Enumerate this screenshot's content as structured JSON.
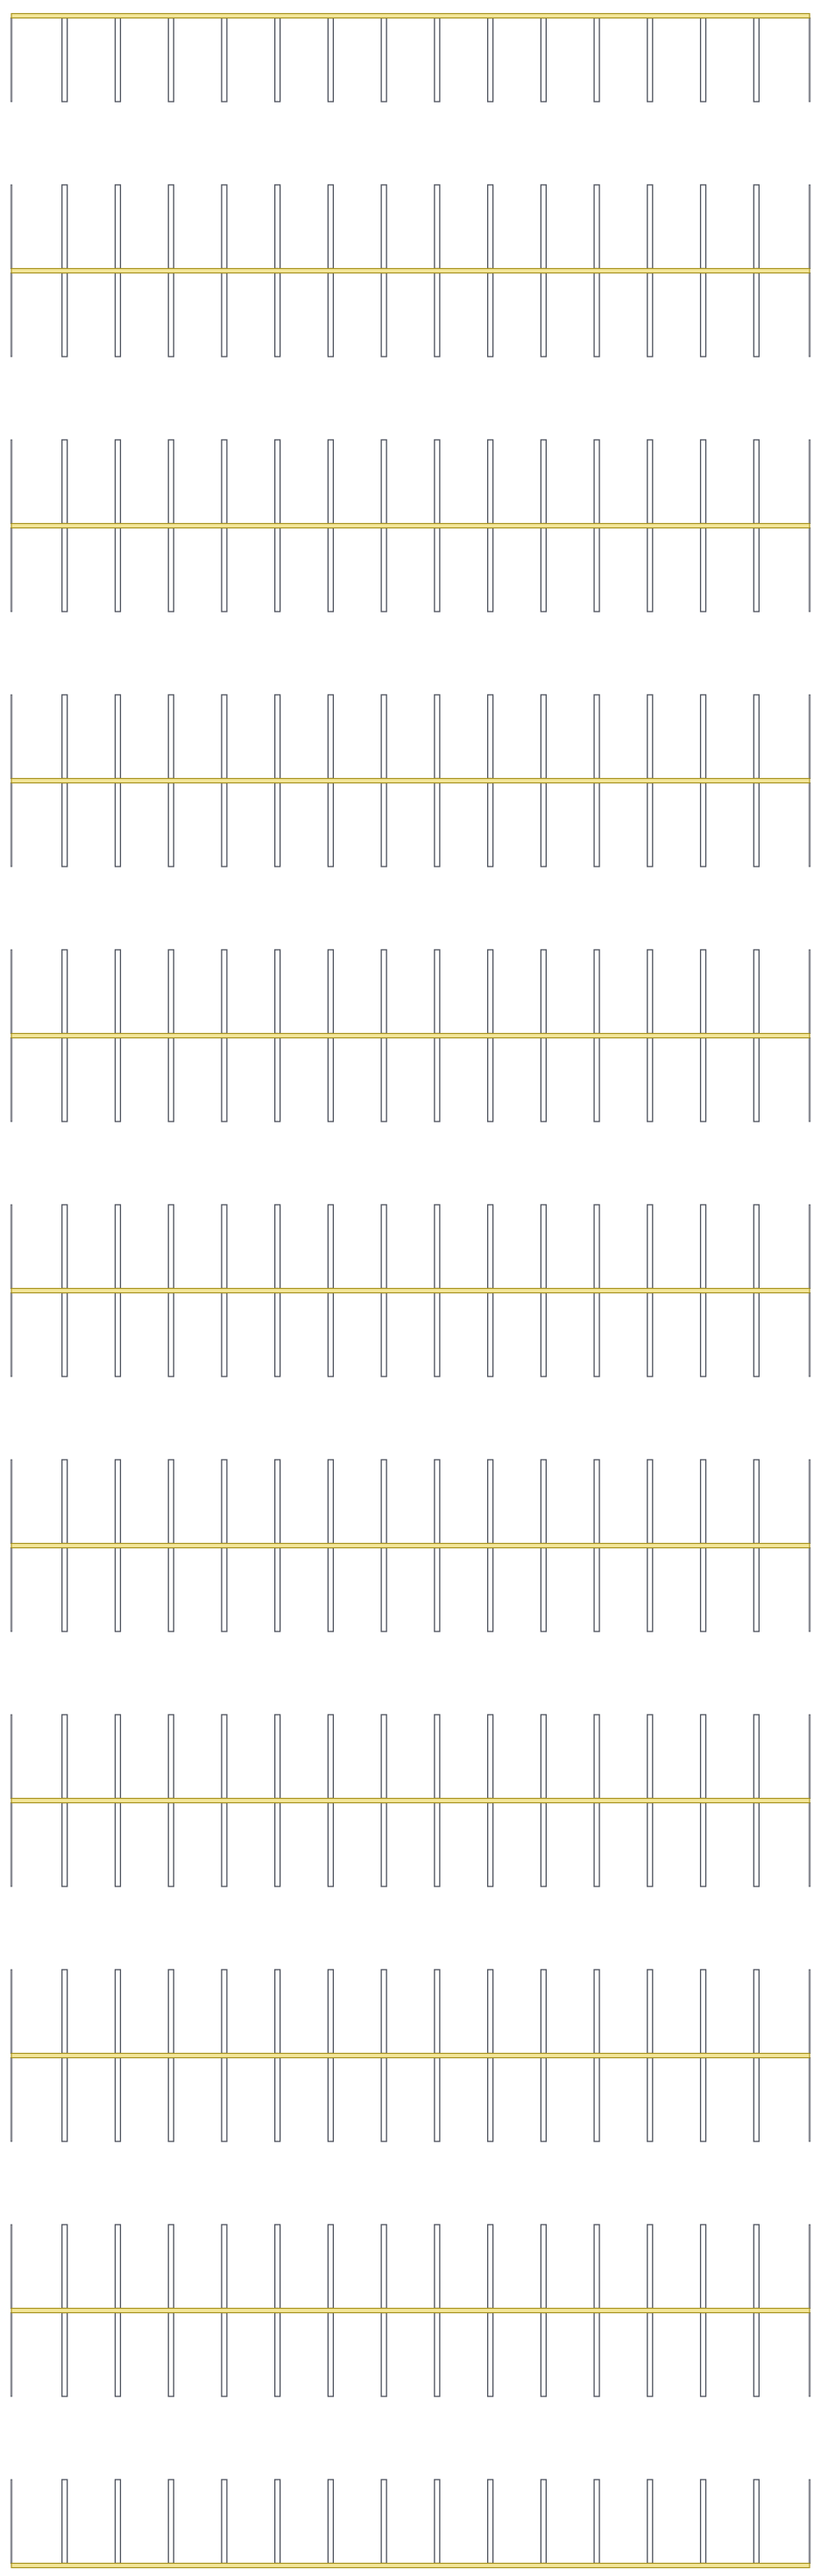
{
  "pattern": {
    "description_free": true,
    "bands": 11,
    "posts_per_band": 16,
    "band_type": "fence-panel"
  },
  "colors": {
    "background": "#ffffff",
    "post_fill": "#ffffff",
    "post_stroke": "#4a4f5a",
    "rail_fill": "#f4e79a",
    "rail_stroke": "#a8931f"
  }
}
